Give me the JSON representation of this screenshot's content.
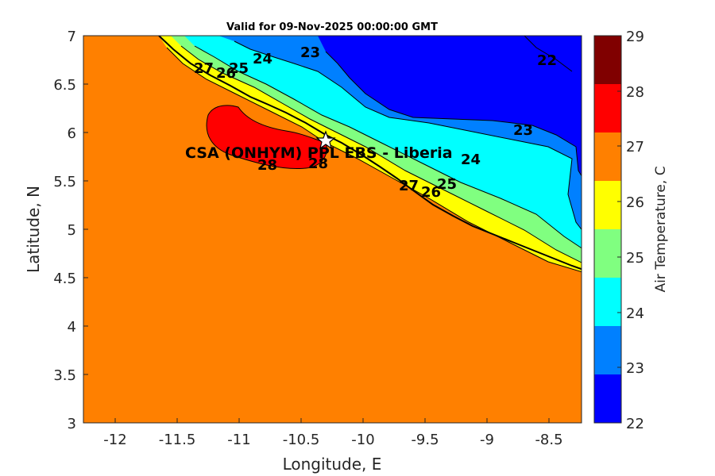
{
  "title": "Valid for 09-Nov-2025 00:00:00 GMT",
  "station_label": "CSA (ONHYM) PPL EBS  - Liberia",
  "x_axis": {
    "label": "Longitude, E",
    "ticks": [
      "-12",
      "-11.5",
      "-11",
      "-10.5",
      "-10",
      "-9.5",
      "-9",
      "-8.5"
    ]
  },
  "y_axis": {
    "label": "Latitude, N",
    "ticks": [
      "7",
      "6.5",
      "6",
      "5.5",
      "5",
      "4.5",
      "4",
      "3.5",
      "3"
    ]
  },
  "colorbar": {
    "label": "Air Temperature, C",
    "ticks": [
      "29",
      "28",
      "27",
      "26",
      "25",
      "24",
      "23",
      "22"
    ],
    "colors": [
      "#800000",
      "#ff0000",
      "#ff8000",
      "#ffff00",
      "#80ff80",
      "#00ffff",
      "#0080ff",
      "#0000ff"
    ]
  },
  "contour_labels": {
    "l23a": "23",
    "l22": "22",
    "l24a": "24",
    "l25a": "25",
    "l26a": "26",
    "l27a": "27",
    "l28a": "28",
    "l28b": "28",
    "l23b": "23",
    "l24b": "24",
    "l25b": "25",
    "l26b": "26",
    "l27b": "27"
  },
  "chart_data": {
    "type": "heatmap",
    "title": "Valid for 09-Nov-2025 00:00:00 GMT",
    "xlabel": "Longitude, E",
    "ylabel": "Latitude, N",
    "xlim": [
      -12.3,
      -8.3
    ],
    "ylim": [
      3,
      7
    ],
    "colorbar_range": [
      22,
      29
    ],
    "contour_levels": [
      22,
      23,
      24,
      25,
      26,
      27,
      28,
      29
    ],
    "station": {
      "name": "CSA (ONHYM) PPL EBS  - Liberia",
      "lon": -10.3,
      "lat": 5.92
    }
  }
}
